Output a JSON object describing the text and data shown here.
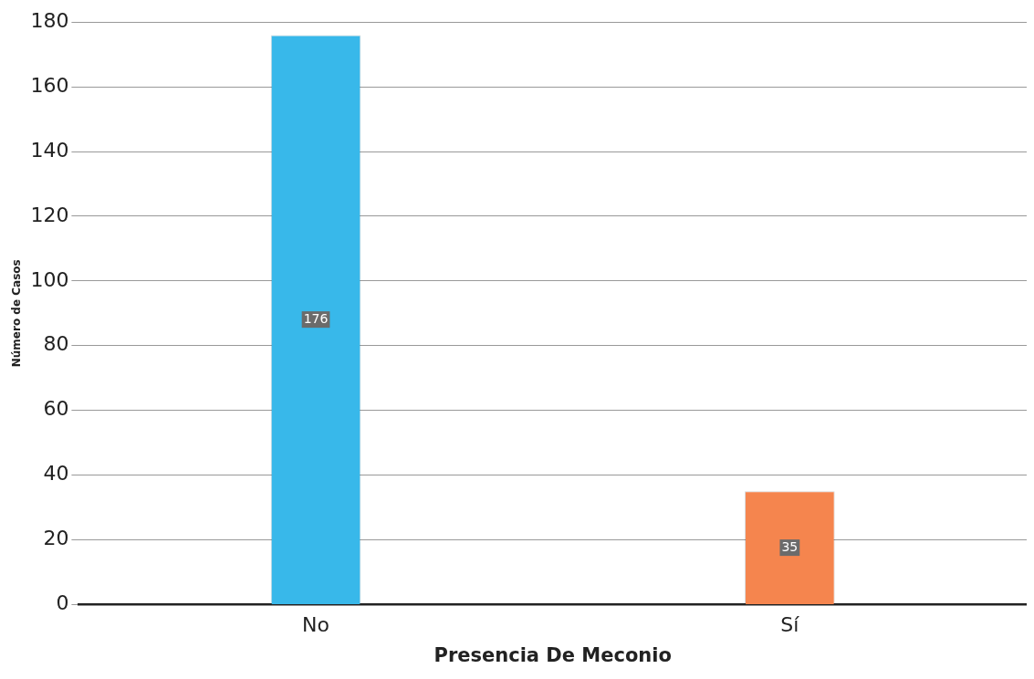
{
  "chart_data": {
    "type": "bar",
    "xlabel": "Presencia De Meconio",
    "ylabel": "Número de Casos",
    "categories": [
      "No",
      "Sí"
    ],
    "values": [
      176,
      35
    ],
    "colors": [
      "#38b8ea",
      "#f5854e"
    ],
    "ylim": [
      0,
      180
    ],
    "yticks": [
      0,
      20,
      40,
      60,
      80,
      100,
      120,
      140,
      160,
      180
    ],
    "grid": "y",
    "legend": false,
    "data_labels": true
  }
}
